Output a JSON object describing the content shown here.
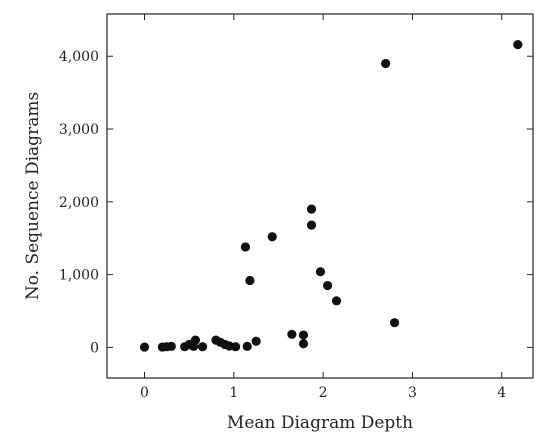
{
  "chart_data": {
    "type": "scatter",
    "title": "",
    "xlabel": "Mean Diagram Depth",
    "ylabel": "No. Sequence Diagrams",
    "xlim": [
      -0.42,
      4.35
    ],
    "ylim": [
      -420,
      4580
    ],
    "x_ticks": [
      0,
      1,
      2,
      3,
      4
    ],
    "x_tick_labels": [
      "0",
      "1",
      "2",
      "3",
      "4"
    ],
    "y_ticks": [
      0,
      1000,
      2000,
      3000,
      4000
    ],
    "y_tick_labels": [
      "0",
      "1,000",
      "2,000",
      "3,000",
      "4,000"
    ],
    "grid": false,
    "legend": "none",
    "marker_color": "#111111",
    "series": [
      {
        "points": [
          [
            0.0,
            5
          ],
          [
            0.2,
            5
          ],
          [
            0.25,
            10
          ],
          [
            0.3,
            15
          ],
          [
            0.45,
            10
          ],
          [
            0.5,
            40
          ],
          [
            0.55,
            15
          ],
          [
            0.57,
            100
          ],
          [
            0.65,
            10
          ],
          [
            0.8,
            100
          ],
          [
            0.85,
            70
          ],
          [
            0.9,
            40
          ],
          [
            0.95,
            20
          ],
          [
            1.02,
            10
          ],
          [
            1.13,
            1380
          ],
          [
            1.15,
            15
          ],
          [
            1.18,
            920
          ],
          [
            1.25,
            85
          ],
          [
            1.43,
            1520
          ],
          [
            1.65,
            180
          ],
          [
            1.78,
            170
          ],
          [
            1.78,
            50
          ],
          [
            1.87,
            1900
          ],
          [
            1.87,
            1680
          ],
          [
            1.97,
            1040
          ],
          [
            2.05,
            850
          ],
          [
            2.15,
            640
          ],
          [
            2.7,
            3900
          ],
          [
            2.8,
            340
          ],
          [
            4.18,
            4160
          ]
        ]
      }
    ]
  }
}
